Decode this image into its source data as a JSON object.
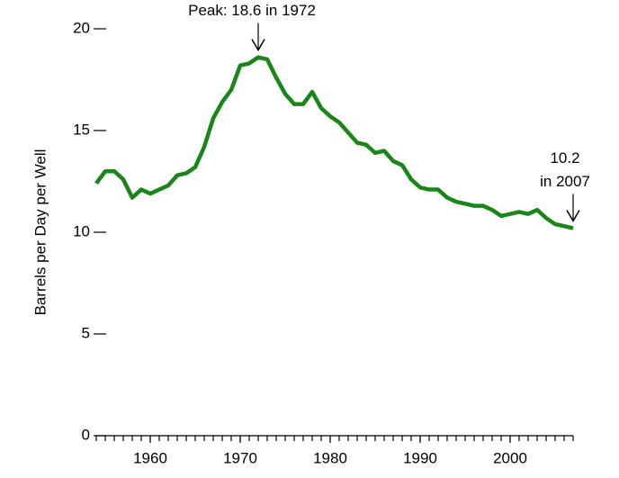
{
  "chart_data": {
    "type": "line",
    "y_label": "Barrels per Day per Well",
    "x": [
      1954,
      1955,
      1956,
      1957,
      1958,
      1959,
      1960,
      1961,
      1962,
      1963,
      1964,
      1965,
      1966,
      1967,
      1968,
      1969,
      1970,
      1971,
      1972,
      1973,
      1974,
      1975,
      1976,
      1977,
      1978,
      1979,
      1980,
      1981,
      1982,
      1983,
      1984,
      1985,
      1986,
      1987,
      1988,
      1989,
      1990,
      1991,
      1992,
      1993,
      1994,
      1995,
      1996,
      1997,
      1998,
      1999,
      2000,
      2001,
      2002,
      2003,
      2004,
      2005,
      2006,
      2007
    ],
    "series": [
      {
        "color": "#1a861a",
        "values": [
          12.4,
          13.0,
          13.0,
          12.6,
          11.7,
          12.1,
          11.9,
          12.1,
          12.3,
          12.8,
          12.9,
          13.2,
          14.2,
          15.6,
          16.4,
          17.0,
          18.2,
          18.3,
          18.6,
          18.5,
          17.6,
          16.8,
          16.3,
          16.3,
          16.9,
          16.1,
          15.7,
          15.4,
          14.9,
          14.4,
          14.3,
          13.9,
          14.0,
          13.5,
          13.3,
          12.6,
          12.2,
          12.1,
          12.1,
          11.7,
          11.5,
          11.4,
          11.3,
          11.3,
          11.1,
          10.8,
          10.9,
          11.0,
          10.9,
          11.1,
          10.7,
          10.4,
          10.3,
          10.2
        ]
      }
    ],
    "xlim": [
      1954,
      2007
    ],
    "xticks": [
      1960,
      1970,
      1980,
      1990,
      2000
    ],
    "ylim": [
      0,
      20
    ],
    "yticks": [
      0,
      5,
      10,
      15,
      20
    ],
    "annotations": [
      {
        "lines": [
          "Peak:  18.6 in 1972"
        ],
        "x": 1972,
        "y": 18.6
      },
      {
        "lines": [
          "10.2",
          "in 2007"
        ],
        "x": 2007,
        "y": 10.2
      }
    ]
  }
}
